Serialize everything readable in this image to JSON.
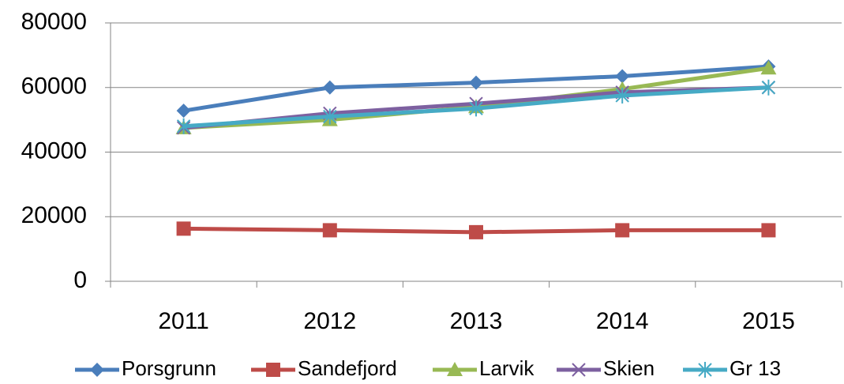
{
  "chart_data": {
    "type": "line",
    "categories": [
      "2011",
      "2012",
      "2013",
      "2014",
      "2015"
    ],
    "series": [
      {
        "name": "Porsgrunn",
        "color": "#4a7ebb",
        "values": [
          52800,
          60000,
          61500,
          63500,
          66500
        ]
      },
      {
        "name": "Sandefjord",
        "color": "#be4b48",
        "values": [
          16300,
          15800,
          15200,
          15800,
          15800
        ]
      },
      {
        "name": "Larvik",
        "color": "#98b954",
        "values": [
          47500,
          50000,
          54000,
          59500,
          66000
        ]
      },
      {
        "name": "Skien",
        "color": "#7d60a0",
        "values": [
          47500,
          52000,
          55000,
          58500,
          60000
        ]
      },
      {
        "name": "Gr 13",
        "color": "#46aac5",
        "values": [
          48000,
          51000,
          53500,
          57500,
          60000
        ]
      }
    ],
    "ylim": [
      0,
      80000
    ],
    "yticks": [
      0,
      20000,
      40000,
      60000,
      80000
    ],
    "grid": true,
    "legend": "bottom"
  }
}
